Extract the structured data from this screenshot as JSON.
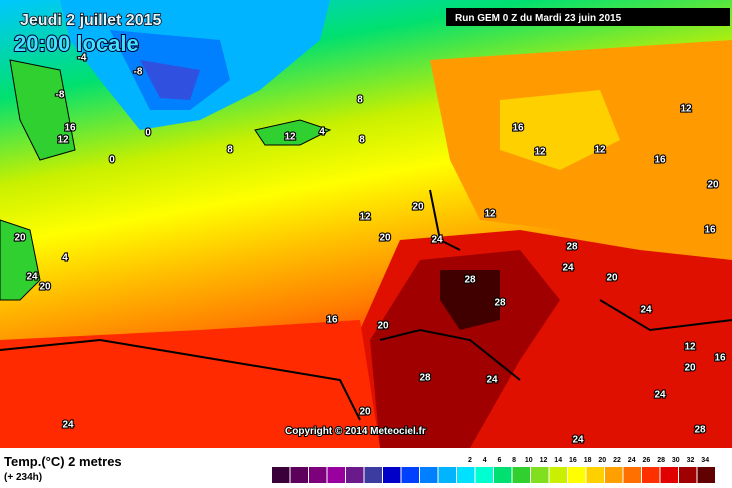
{
  "header": {
    "date": "Jeudi 2 juillet 2015",
    "time": "20:00 locale",
    "run": "Run GEM 0 Z du Mardi 23 juin 2015"
  },
  "copyright": "Copyright © 2014 Meteociel.fr",
  "map": {
    "labels": [
      "-8",
      "-4",
      "-8",
      "16",
      "12",
      "0",
      "0",
      "8",
      "8",
      "8",
      "12",
      "4",
      "12",
      "20",
      "20",
      "24",
      "12",
      "20",
      "24",
      "20",
      "4",
      "16",
      "20",
      "28",
      "28",
      "28",
      "24",
      "20",
      "24",
      "24",
      "24",
      "28",
      "20",
      "24",
      "16",
      "12",
      "12",
      "16",
      "20",
      "12",
      "16",
      "12",
      "16",
      "20",
      "28",
      "24"
    ]
  },
  "legend": {
    "title": "Temp.(°C) 2 metres",
    "subtitle": "(+ 234h)",
    "colors": [
      "#3a003a",
      "#5c005c",
      "#7d007d",
      "#9a00a0",
      "#6a1a8a",
      "#3c3ca0",
      "#0000c8",
      "#0040ff",
      "#0080ff",
      "#00b4ff",
      "#00e0ff",
      "#00ffd0",
      "#00e070",
      "#30d030",
      "#80e020",
      "#c8f000",
      "#ffff00",
      "#ffd000",
      "#ffa000",
      "#ff7000",
      "#ff3000",
      "#e00000",
      "#a00000",
      "#600000"
    ],
    "ticks": [
      2,
      4,
      6,
      8,
      10,
      12,
      14,
      16,
      18,
      20,
      22,
      24,
      26,
      28,
      30,
      32,
      34
    ]
  }
}
